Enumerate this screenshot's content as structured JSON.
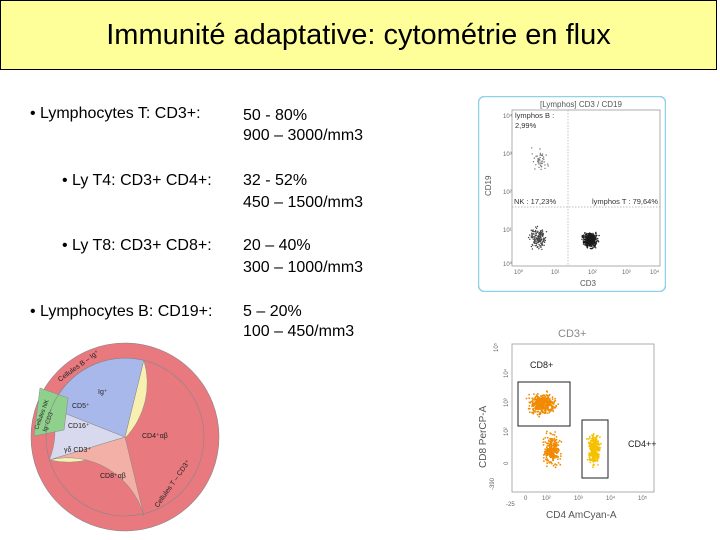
{
  "slide": {
    "title": "Immunité adaptative: cytométrie en flux"
  },
  "rows": [
    {
      "label": "• Lymphocytes T: CD3+:",
      "pct": "50 - 80%",
      "count": "900 – 3000/mm3"
    },
    {
      "label": "• Ly T4: CD3+ CD4+:",
      "pct": "32 - 52%",
      "count": "450 – 1500/mm3"
    },
    {
      "label": "• Ly T8: CD3+ CD8+:",
      "pct": "20 – 40%",
      "count": "300 – 1000/mm3"
    },
    {
      "label": "• Lymphocytes B: CD19+:",
      "pct": "5 – 20%",
      "count": "100 – 450/mm3"
    }
  ],
  "plot1": {
    "title": "[Lymphos] CD3 / CD19",
    "y_axis": "CD19",
    "x_axis": "CD3",
    "y_ticks": [
      "10⁴",
      "10³",
      "10²",
      "10¹",
      "10⁰"
    ],
    "x_ticks": [
      "10⁰",
      "10¹",
      "10²",
      "10³",
      "10⁴"
    ],
    "gate_b": "lymphos B :",
    "gate_b_value": "2,99%",
    "gate_nk": "NK : 17,23%",
    "gate_t": "lymphos T : 79,64%"
  },
  "plot2": {
    "title": "CD3+",
    "y_axis": "CD8 PerCP-A",
    "x_axis": "CD4 AmCyan-A",
    "y_ticks": [
      "10⁵",
      "10⁴",
      "10³",
      "10²",
      "0",
      "-390"
    ],
    "x_ticks": [
      "-25",
      "0",
      "10²",
      "10³",
      "10⁴",
      "10⁵"
    ],
    "gate_cd8": "CD8+",
    "gate_cd4": "CD4++",
    "colors": {
      "dots": "#f08a00",
      "dots_light": "#f5c000"
    }
  },
  "pie": {
    "outer_b": "Cellules B – Ig⁺",
    "outer_nk": "Cellules NK",
    "outer_nk2": "Ig⁻CD3⁻",
    "outer_t": "Cellules T – CD3⁺",
    "inner_ig": "Ig⁺",
    "inner_cd5": "CD5⁺",
    "inner_cd16": "CD16⁺",
    "inner_gd": "γδ CD3⁺",
    "inner_cd4": "CD4⁺αβ",
    "inner_cd8": "CD8⁺αβ",
    "colors": {
      "outer_ring": "#e8797f",
      "t_cells": "#f7f0b0",
      "cd8": "#f2b0a6",
      "b_cells": "#a9b8ea",
      "nk": "#8ed08c"
    }
  }
}
